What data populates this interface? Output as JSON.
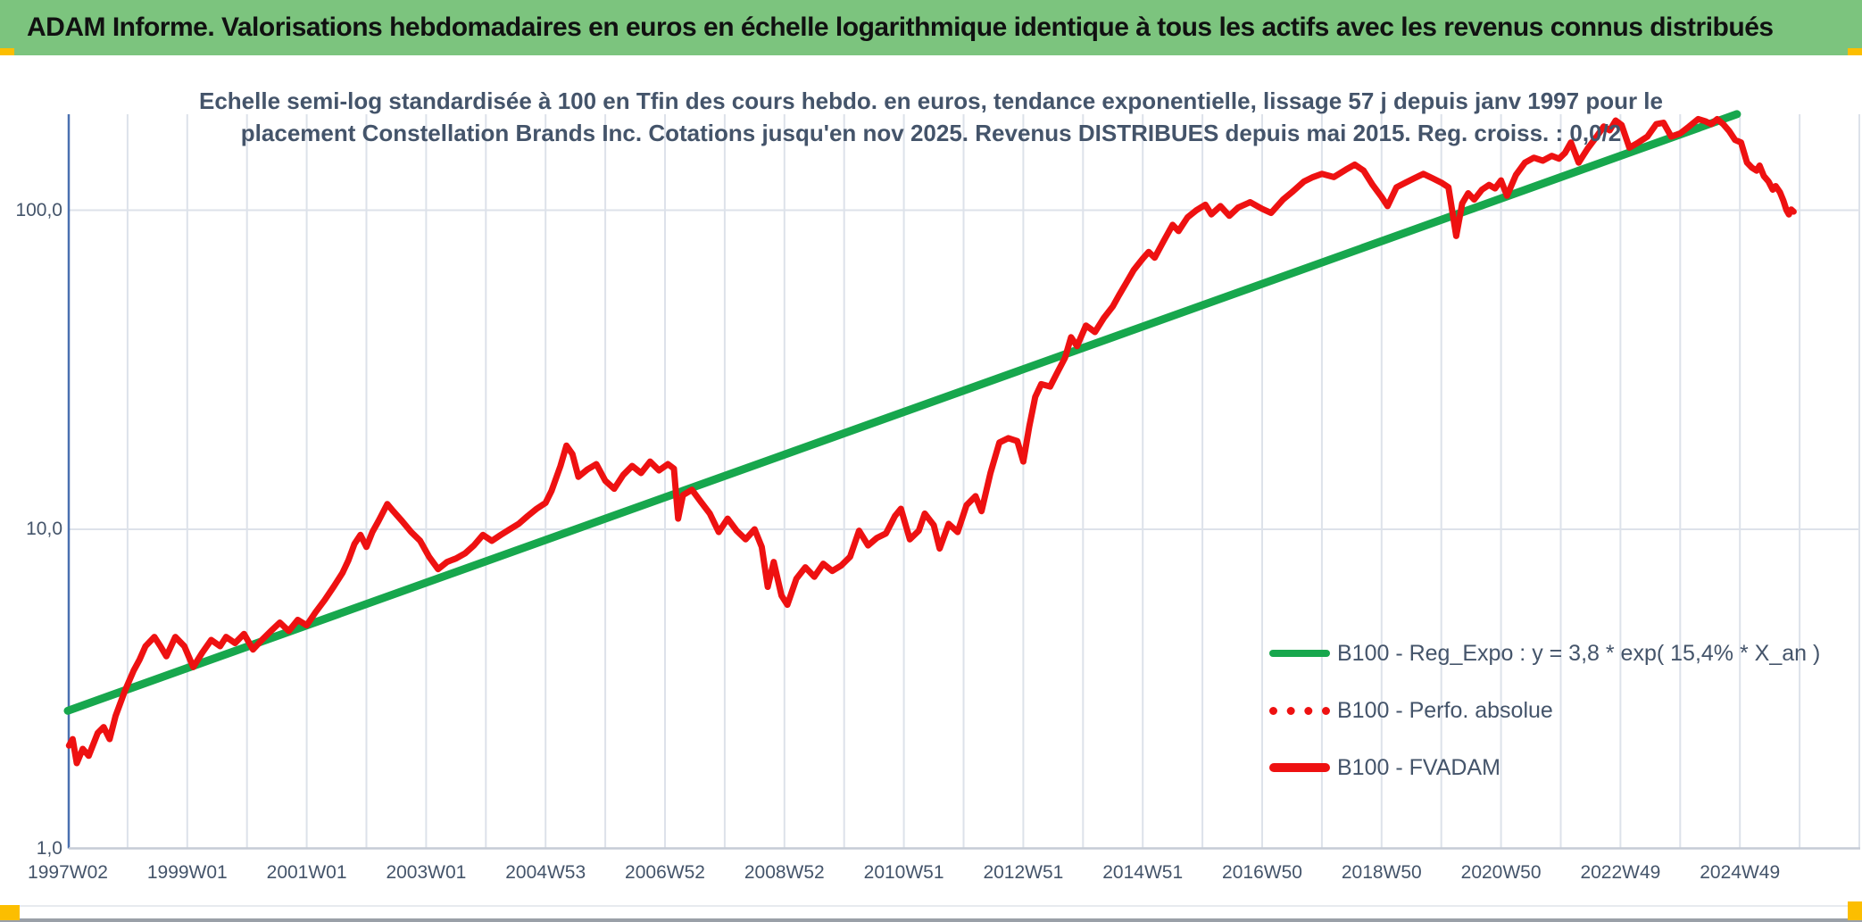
{
  "header": {
    "title": "ADAM Informe. Valorisations hebdomadaires en euros en échelle logarithmique identique à tous les actifs avec les revenus connus distribués"
  },
  "chart_title": {
    "line1": "Echelle semi-log standardisée à 100 en Tfin des cours hebdo. en euros, tendance exponentielle, lissage 57 j depuis janv 1997 pour le",
    "line2": "placement Constellation Brands Inc. Cotations jusqu'en nov 2025. Revenus DISTRIBUES depuis mai 2015. Reg. croiss. : 0,0/2"
  },
  "colors": {
    "header_bg": "#7cc47e",
    "accent_yellow": "#fcbe00",
    "trend_green": "#17a74d",
    "series_red": "#ee1111",
    "text_blue": "#44546a",
    "gridline": "#dde2ea",
    "y_axis_line": "#4a70b0",
    "x_axis_line": "#c6ccd6"
  },
  "y_axis": {
    "tick_labels": [
      "100,0",
      "10,0",
      "1,0"
    ],
    "tick_values": [
      100,
      10,
      1
    ],
    "scale": "log",
    "max_value": 200
  },
  "x_axis": {
    "tick_labels": [
      "1997W02",
      "1999W01",
      "2001W01",
      "2003W01",
      "2004W53",
      "2006W52",
      "2008W52",
      "2010W51",
      "2012W51",
      "2014W51",
      "2016W50",
      "2018W50",
      "2020W50",
      "2022W49",
      "2024W49"
    ],
    "tick_years": [
      1997,
      1999,
      2001,
      2003,
      2005,
      2007,
      2009,
      2011,
      2013,
      2015,
      2017,
      2019,
      2021,
      2023,
      2025
    ],
    "gridline_years": {
      "start": 1997,
      "end": 2027,
      "step": 1
    }
  },
  "legend": {
    "items": [
      {
        "label": "B100 - Reg_Expo : y = 3,8 * exp( 15,4% *  X_an )",
        "swatch": "solid-green"
      },
      {
        "label": "B100 - Perfo. absolue",
        "swatch": "dotted-red"
      },
      {
        "label": "B100 - FVADAM",
        "swatch": "solid-red"
      }
    ]
  },
  "chart_data": {
    "type": "line",
    "title": "Echelle semi-log standardisée à 100 en Tfin des cours hebdo. en euros, tendance exponentielle, lissage 57 j depuis janv 1997 pour le placement Constellation Brands Inc. Cotations jusqu'en nov 2025. Revenus DISTRIBUES depuis mai 2015. Reg. croiss. : 0,0/2",
    "y_scale": "log",
    "ylim": [
      1,
      200
    ],
    "x_unit": "year",
    "grid": true,
    "legend_position": "inside-right",
    "series": [
      {
        "name": "B100 - Reg_Expo : y = 3,8 * exp( 15,4% *  X_an )",
        "style": "solid",
        "color": "#17a74d",
        "width": 9,
        "equation": "y = 3,8 * exp( 15,4% * X_an )",
        "points": [
          [
            1997.0,
            2.7
          ],
          [
            2024.95,
            200
          ]
        ]
      },
      {
        "name": "B100 - Perfo. absolue",
        "style": "dotted",
        "color": "#ee1111",
        "note": "coincides with B100 - FVADAM (hidden behind solid line)",
        "points": []
      },
      {
        "name": "B100 - FVADAM",
        "style": "solid",
        "color": "#ee1111",
        "width": 7,
        "points": [
          [
            1997.02,
            2.1
          ],
          [
            1997.08,
            2.2
          ],
          [
            1997.15,
            1.85
          ],
          [
            1997.25,
            2.05
          ],
          [
            1997.35,
            1.95
          ],
          [
            1997.5,
            2.3
          ],
          [
            1997.6,
            2.4
          ],
          [
            1997.7,
            2.2
          ],
          [
            1997.8,
            2.6
          ],
          [
            1997.95,
            3.1
          ],
          [
            1998.1,
            3.6
          ],
          [
            1998.2,
            3.9
          ],
          [
            1998.3,
            4.3
          ],
          [
            1998.45,
            4.6
          ],
          [
            1998.55,
            4.3
          ],
          [
            1998.65,
            4.0
          ],
          [
            1998.8,
            4.6
          ],
          [
            1998.95,
            4.3
          ],
          [
            1999.1,
            3.7
          ],
          [
            1999.25,
            4.1
          ],
          [
            1999.4,
            4.5
          ],
          [
            1999.55,
            4.3
          ],
          [
            1999.65,
            4.6
          ],
          [
            1999.8,
            4.4
          ],
          [
            1999.95,
            4.7
          ],
          [
            2000.1,
            4.2
          ],
          [
            2000.25,
            4.5
          ],
          [
            2000.4,
            4.8
          ],
          [
            2000.55,
            5.1
          ],
          [
            2000.7,
            4.8
          ],
          [
            2000.85,
            5.2
          ],
          [
            2001.0,
            5.0
          ],
          [
            2001.15,
            5.5
          ],
          [
            2001.3,
            6.0
          ],
          [
            2001.45,
            6.6
          ],
          [
            2001.6,
            7.3
          ],
          [
            2001.7,
            8.0
          ],
          [
            2001.8,
            9.0
          ],
          [
            2001.9,
            9.6
          ],
          [
            2002.0,
            8.8
          ],
          [
            2002.1,
            9.8
          ],
          [
            2002.2,
            10.6
          ],
          [
            2002.35,
            12.0
          ],
          [
            2002.45,
            11.4
          ],
          [
            2002.6,
            10.6
          ],
          [
            2002.75,
            9.8
          ],
          [
            2002.9,
            9.2
          ],
          [
            2003.05,
            8.2
          ],
          [
            2003.2,
            7.5
          ],
          [
            2003.35,
            7.9
          ],
          [
            2003.5,
            8.1
          ],
          [
            2003.65,
            8.4
          ],
          [
            2003.8,
            8.9
          ],
          [
            2003.95,
            9.6
          ],
          [
            2004.1,
            9.2
          ],
          [
            2004.25,
            9.6
          ],
          [
            2004.4,
            10.0
          ],
          [
            2004.55,
            10.4
          ],
          [
            2004.7,
            11.0
          ],
          [
            2004.85,
            11.6
          ],
          [
            2005.0,
            12.1
          ],
          [
            2005.1,
            13.2
          ],
          [
            2005.25,
            15.8
          ],
          [
            2005.35,
            18.3
          ],
          [
            2005.45,
            17.2
          ],
          [
            2005.55,
            14.6
          ],
          [
            2005.7,
            15.4
          ],
          [
            2005.85,
            16.0
          ],
          [
            2006.0,
            14.2
          ],
          [
            2006.15,
            13.4
          ],
          [
            2006.3,
            14.8
          ],
          [
            2006.45,
            15.8
          ],
          [
            2006.6,
            15.0
          ],
          [
            2006.75,
            16.3
          ],
          [
            2006.9,
            15.3
          ],
          [
            2007.05,
            16.0
          ],
          [
            2007.15,
            15.5
          ],
          [
            2007.22,
            10.8
          ],
          [
            2007.3,
            12.8
          ],
          [
            2007.45,
            13.3
          ],
          [
            2007.6,
            12.2
          ],
          [
            2007.75,
            11.2
          ],
          [
            2007.9,
            9.8
          ],
          [
            2008.05,
            10.8
          ],
          [
            2008.2,
            9.9
          ],
          [
            2008.35,
            9.3
          ],
          [
            2008.5,
            10.0
          ],
          [
            2008.62,
            8.8
          ],
          [
            2008.72,
            6.6
          ],
          [
            2008.82,
            7.9
          ],
          [
            2008.95,
            6.2
          ],
          [
            2009.05,
            5.8
          ],
          [
            2009.2,
            7.0
          ],
          [
            2009.35,
            7.6
          ],
          [
            2009.5,
            7.1
          ],
          [
            2009.65,
            7.8
          ],
          [
            2009.8,
            7.4
          ],
          [
            2009.95,
            7.7
          ],
          [
            2010.1,
            8.2
          ],
          [
            2010.25,
            9.9
          ],
          [
            2010.4,
            8.9
          ],
          [
            2010.55,
            9.4
          ],
          [
            2010.7,
            9.7
          ],
          [
            2010.85,
            11.0
          ],
          [
            2010.95,
            11.6
          ],
          [
            2011.1,
            9.3
          ],
          [
            2011.25,
            9.9
          ],
          [
            2011.35,
            11.2
          ],
          [
            2011.5,
            10.3
          ],
          [
            2011.6,
            8.7
          ],
          [
            2011.75,
            10.4
          ],
          [
            2011.9,
            9.8
          ],
          [
            2012.05,
            11.9
          ],
          [
            2012.2,
            12.7
          ],
          [
            2012.3,
            11.4
          ],
          [
            2012.45,
            15.0
          ],
          [
            2012.6,
            18.7
          ],
          [
            2012.75,
            19.3
          ],
          [
            2012.9,
            18.9
          ],
          [
            2013.0,
            16.3
          ],
          [
            2013.1,
            21.0
          ],
          [
            2013.2,
            26.0
          ],
          [
            2013.3,
            28.5
          ],
          [
            2013.45,
            28.0
          ],
          [
            2013.55,
            30.5
          ],
          [
            2013.7,
            34.5
          ],
          [
            2013.8,
            40.0
          ],
          [
            2013.9,
            37.5
          ],
          [
            2014.05,
            43.5
          ],
          [
            2014.2,
            41.5
          ],
          [
            2014.35,
            46.0
          ],
          [
            2014.5,
            50.0
          ],
          [
            2014.6,
            54.0
          ],
          [
            2014.72,
            59.0
          ],
          [
            2014.85,
            65.0
          ],
          [
            2015.0,
            70.5
          ],
          [
            2015.1,
            74.0
          ],
          [
            2015.2,
            71.0
          ],
          [
            2015.35,
            80.0
          ],
          [
            2015.5,
            90.0
          ],
          [
            2015.6,
            86.0
          ],
          [
            2015.75,
            95.0
          ],
          [
            2015.9,
            100.0
          ],
          [
            2016.05,
            104.0
          ],
          [
            2016.15,
            97.0
          ],
          [
            2016.3,
            103.0
          ],
          [
            2016.45,
            96.0
          ],
          [
            2016.6,
            102.0
          ],
          [
            2016.8,
            106.0
          ],
          [
            2017.0,
            101.0
          ],
          [
            2017.15,
            98.0
          ],
          [
            2017.35,
            108.0
          ],
          [
            2017.5,
            114.0
          ],
          [
            2017.7,
            123.0
          ],
          [
            2017.85,
            127.0
          ],
          [
            2018.0,
            130.0
          ],
          [
            2018.2,
            127.0
          ],
          [
            2018.4,
            134.0
          ],
          [
            2018.55,
            139.0
          ],
          [
            2018.7,
            133.0
          ],
          [
            2018.85,
            120.0
          ],
          [
            2019.0,
            110.0
          ],
          [
            2019.1,
            103.0
          ],
          [
            2019.25,
            118.0
          ],
          [
            2019.4,
            122.0
          ],
          [
            2019.55,
            126.0
          ],
          [
            2019.7,
            130.0
          ],
          [
            2019.85,
            126.0
          ],
          [
            2020.0,
            122.0
          ],
          [
            2020.12,
            118.0
          ],
          [
            2020.25,
            83.0
          ],
          [
            2020.35,
            105.0
          ],
          [
            2020.45,
            113.0
          ],
          [
            2020.55,
            108.0
          ],
          [
            2020.68,
            116.0
          ],
          [
            2020.8,
            120.0
          ],
          [
            2020.9,
            117.0
          ],
          [
            2021.0,
            124.0
          ],
          [
            2021.1,
            111.0
          ],
          [
            2021.25,
            129.0
          ],
          [
            2021.4,
            141.0
          ],
          [
            2021.55,
            146.0
          ],
          [
            2021.7,
            143.0
          ],
          [
            2021.85,
            148.0
          ],
          [
            2021.97,
            145.0
          ],
          [
            2022.07,
            151.0
          ],
          [
            2022.17,
            163.0
          ],
          [
            2022.3,
            141.0
          ],
          [
            2022.45,
            156.0
          ],
          [
            2022.6,
            170.0
          ],
          [
            2022.72,
            183.0
          ],
          [
            2022.82,
            178.0
          ],
          [
            2022.92,
            191.0
          ],
          [
            2023.02,
            185.0
          ],
          [
            2023.15,
            157.0
          ],
          [
            2023.3,
            163.0
          ],
          [
            2023.45,
            170.0
          ],
          [
            2023.6,
            186.0
          ],
          [
            2023.72,
            188.0
          ],
          [
            2023.85,
            170.0
          ],
          [
            2024.0,
            174.0
          ],
          [
            2024.15,
            183.0
          ],
          [
            2024.3,
            193.0
          ],
          [
            2024.42,
            190.0
          ],
          [
            2024.52,
            186.0
          ],
          [
            2024.62,
            193.0
          ],
          [
            2024.72,
            186.0
          ],
          [
            2024.82,
            177.0
          ],
          [
            2024.92,
            166.0
          ],
          [
            2025.02,
            163.0
          ],
          [
            2025.12,
            141.0
          ],
          [
            2025.2,
            136.0
          ],
          [
            2025.28,
            133.0
          ],
          [
            2025.33,
            138.0
          ],
          [
            2025.4,
            128.0
          ],
          [
            2025.48,
            123.0
          ],
          [
            2025.55,
            116.0
          ],
          [
            2025.6,
            119.0
          ],
          [
            2025.67,
            114.0
          ],
          [
            2025.73,
            107.0
          ],
          [
            2025.78,
            100.0
          ],
          [
            2025.82,
            97.0
          ],
          [
            2025.86,
            100.5
          ],
          [
            2025.9,
            99.0
          ]
        ]
      }
    ]
  }
}
